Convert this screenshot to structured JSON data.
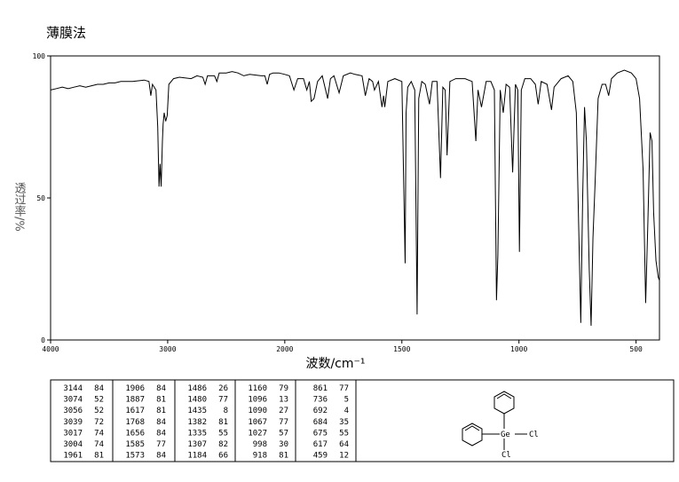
{
  "chart_data": {
    "type": "line",
    "title": "薄膜法",
    "x_label": "波数/cm⁻¹",
    "y_label": "透过率/%",
    "x": [
      4000,
      3950,
      3900,
      3850,
      3800,
      3750,
      3700,
      3650,
      3600,
      3550,
      3500,
      3450,
      3400,
      3300,
      3200,
      3160,
      3144,
      3130,
      3100,
      3085,
      3074,
      3065,
      3056,
      3045,
      3039,
      3030,
      3017,
      3004,
      2990,
      2950,
      2900,
      2800,
      2750,
      2700,
      2680,
      2660,
      2600,
      2580,
      2560,
      2500,
      2450,
      2400,
      2350,
      2300,
      2200,
      2170,
      2150,
      2130,
      2100,
      2050,
      2000,
      1980,
      1961,
      1945,
      1920,
      1906,
      1895,
      1887,
      1875,
      1860,
      1840,
      1817,
      1805,
      1790,
      1768,
      1750,
      1720,
      1700,
      1670,
      1656,
      1640,
      1625,
      1617,
      1600,
      1585,
      1578,
      1573,
      1560,
      1530,
      1500,
      1486,
      1482,
      1475,
      1460,
      1445,
      1435,
      1428,
      1415,
      1400,
      1382,
      1370,
      1350,
      1335,
      1325,
      1315,
      1307,
      1295,
      1270,
      1230,
      1200,
      1184,
      1175,
      1160,
      1140,
      1120,
      1105,
      1096,
      1090,
      1080,
      1067,
      1055,
      1040,
      1027,
      1015,
      1005,
      998,
      990,
      975,
      950,
      930,
      918,
      905,
      880,
      861,
      850,
      820,
      790,
      770,
      755,
      745,
      736,
      728,
      720,
      712,
      700,
      692,
      684,
      675,
      662,
      645,
      630,
      617,
      605,
      580,
      550,
      520,
      500,
      485,
      470,
      459,
      450,
      440,
      432,
      425,
      415,
      405,
      400
    ],
    "values": [
      88,
      88.5,
      89,
      88.5,
      89,
      89.5,
      89,
      89.5,
      90,
      90,
      90.5,
      90.5,
      91,
      91,
      91.5,
      91,
      86,
      90,
      88,
      75,
      54,
      62,
      54,
      70,
      76,
      80,
      77,
      79,
      90,
      92,
      92.5,
      92,
      93,
      92.5,
      90,
      93,
      93,
      91,
      94,
      94,
      94.5,
      94,
      93,
      93.5,
      93,
      93,
      90,
      93.5,
      94,
      94,
      93.5,
      93,
      88,
      92,
      92,
      88,
      91,
      84,
      85,
      91,
      93,
      85,
      92,
      93,
      87,
      93,
      94,
      93.5,
      93,
      86,
      92,
      91,
      88,
      91,
      82,
      86,
      82,
      91,
      92,
      91,
      27,
      80,
      89,
      91,
      88,
      9,
      85,
      91,
      90,
      83,
      91,
      91,
      57,
      89,
      88,
      65,
      91,
      92,
      92,
      91,
      70,
      88,
      82,
      91,
      91,
      88,
      14,
      30,
      88,
      80,
      90,
      89,
      59,
      90,
      88,
      31,
      88,
      92,
      92,
      90,
      83,
      91,
      90,
      81,
      89,
      92,
      93,
      91,
      80,
      40,
      6,
      50,
      82,
      70,
      25,
      5,
      36,
      55,
      85,
      90,
      90,
      86,
      92,
      94,
      95,
      94,
      92,
      85,
      60,
      13,
      40,
      73,
      70,
      45,
      28,
      22,
      21
    ],
    "color": "#000000",
    "xlim": [
      4000,
      400
    ],
    "xticks": [
      4000,
      3000,
      2000,
      1500,
      1000,
      500
    ],
    "ylim": [
      0,
      100
    ],
    "yticks": [
      0,
      50,
      100
    ]
  },
  "peak_table": [
    [
      [
        3144,
        84
      ],
      [
        3074,
        52
      ],
      [
        3056,
        52
      ],
      [
        3039,
        72
      ],
      [
        3017,
        74
      ],
      [
        3004,
        74
      ],
      [
        1961,
        81
      ]
    ],
    [
      [
        1906,
        84
      ],
      [
        1887,
        81
      ],
      [
        1617,
        81
      ],
      [
        1768,
        84
      ],
      [
        1656,
        84
      ],
      [
        1585,
        77
      ],
      [
        1573,
        84
      ]
    ],
    [
      [
        1486,
        26
      ],
      [
        1480,
        77
      ],
      [
        1435,
        8
      ],
      [
        1382,
        81
      ],
      [
        1335,
        55
      ],
      [
        1307,
        82
      ],
      [
        1184,
        66
      ]
    ],
    [
      [
        1160,
        79
      ],
      [
        1096,
        13
      ],
      [
        1090,
        27
      ],
      [
        1067,
        77
      ],
      [
        1027,
        57
      ],
      [
        998,
        30
      ],
      [
        918,
        81
      ]
    ],
    [
      [
        861,
        77
      ],
      [
        736,
        5
      ],
      [
        692,
        4
      ],
      [
        684,
        35
      ],
      [
        675,
        55
      ],
      [
        617,
        64
      ],
      [
        459,
        12
      ]
    ]
  ],
  "structure_labels": [
    "Ge",
    "Cl",
    "Cl"
  ]
}
